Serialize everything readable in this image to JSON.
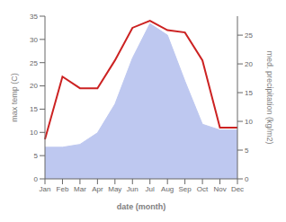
{
  "chart_data": {
    "type": "line",
    "categories": [
      "Jan",
      "Feb",
      "Mar",
      "Apr",
      "May",
      "Jun",
      "Jul",
      "Aug",
      "Sep",
      "Oct",
      "Nov",
      "Dec"
    ],
    "xlabel": "date (month)",
    "ylabel": "max temp (C)",
    "y2label": "med. precipitation (kg/m2)",
    "ylim": [
      0,
      35
    ],
    "yticks": [
      0,
      5,
      10,
      15,
      20,
      25,
      30,
      35
    ],
    "y2lim": [
      0,
      28.3
    ],
    "y2ticks": [
      0,
      5,
      10,
      15,
      20,
      25
    ],
    "series": [
      {
        "type": "area",
        "axis": "y2",
        "color": "#bec8f0",
        "values": [
          5.5,
          5.5,
          6.0,
          8.0,
          13.0,
          21.0,
          27.0,
          25.0,
          17.0,
          9.5,
          8.5,
          8.5
        ]
      },
      {
        "type": "line",
        "color": "#cc2222",
        "values": [
          8.5,
          22.0,
          19.5,
          19.5,
          25.5,
          32.5,
          34.0,
          32.0,
          31.5,
          25.5,
          11.0,
          11.0
        ]
      }
    ]
  }
}
